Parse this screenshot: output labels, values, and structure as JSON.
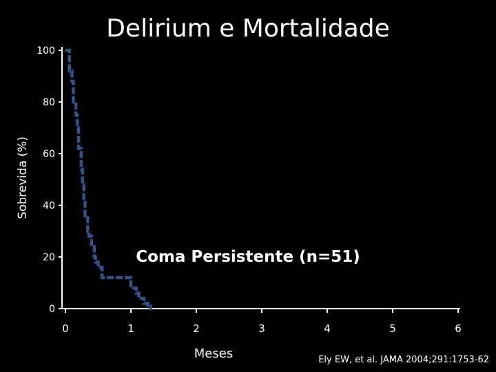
{
  "chart_data": {
    "type": "line",
    "title": "Delirium e Mortalidade",
    "xlabel": "Meses",
    "ylabel": "Sobrevida (%)",
    "xlim": [
      0,
      6
    ],
    "ylim": [
      0,
      100
    ],
    "x_ticks": [
      "0",
      "1",
      "2",
      "3",
      "4",
      "5",
      "6"
    ],
    "y_ticks": [
      "0",
      "20",
      "40",
      "60",
      "80",
      "100"
    ],
    "grid": false,
    "series": [
      {
        "name": "Coma Persistente (n=51)",
        "color": "#34518a",
        "style": "dashed-step",
        "x": [
          0,
          0.06,
          0.1,
          0.12,
          0.16,
          0.18,
          0.2,
          0.24,
          0.26,
          0.28,
          0.3,
          0.34,
          0.36,
          0.4,
          0.44,
          0.46,
          0.5,
          0.56,
          0.6,
          0.9,
          1.0,
          1.08,
          1.12,
          1.2,
          1.26,
          1.3
        ],
        "y": [
          100,
          92,
          88,
          80,
          75,
          70,
          62,
          54,
          48,
          42,
          36,
          30,
          28,
          24,
          20,
          18,
          16,
          12,
          12,
          12,
          8,
          6,
          4,
          2,
          1,
          0
        ]
      }
    ]
  },
  "annotation": "Coma Persistente (n=51)",
  "citation": "Ely EW, et al. JAMA 2004;291:1753-62"
}
